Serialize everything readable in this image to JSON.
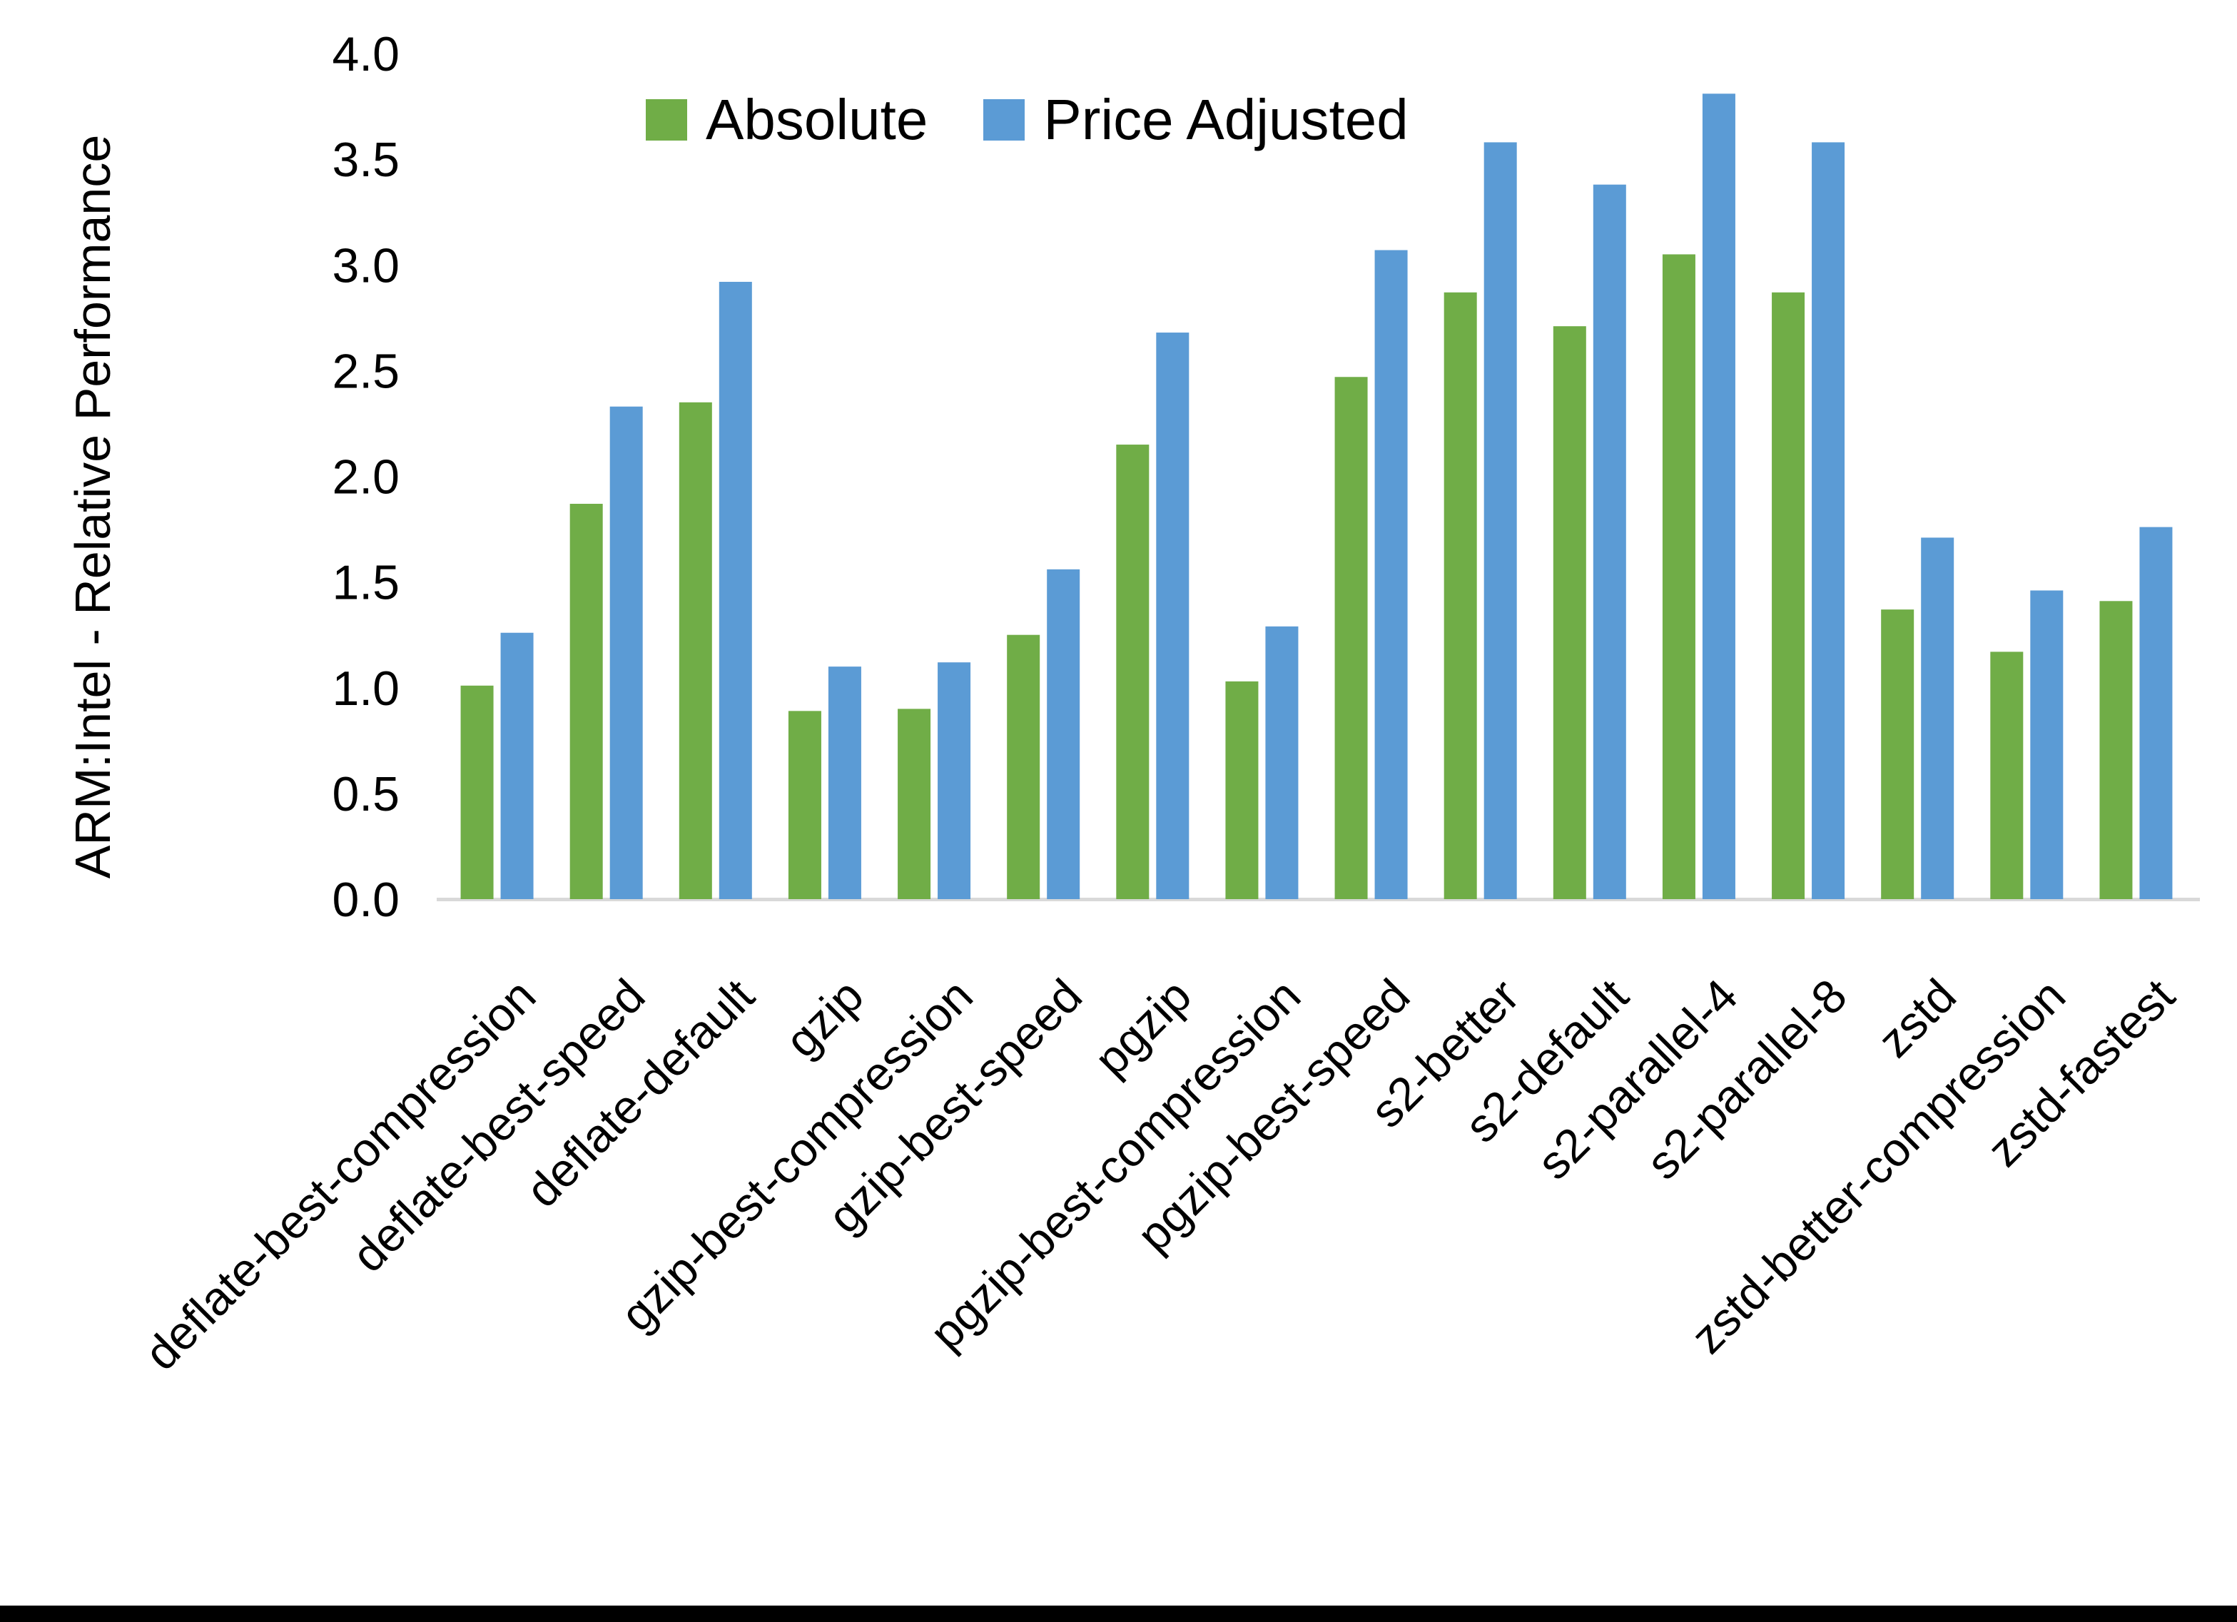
{
  "chart_data": {
    "type": "bar",
    "title": "",
    "xlabel": "",
    "ylabel": "ARM:Intel - Relative Performance",
    "ylim": [
      0.0,
      4.0
    ],
    "ytick_step": 0.5,
    "ytick_labels": [
      "0.0",
      "0.5",
      "1.0",
      "1.5",
      "2.0",
      "2.5",
      "3.0",
      "3.5",
      "4.0"
    ],
    "grid": false,
    "legend_position": "top-center",
    "axis_line_color": "#D9D9D9",
    "text_color": "#000000",
    "categories": [
      "deflate-best-compression",
      "deflate-best-speed",
      "deflate-default",
      "gzip",
      "gzip-best-compression",
      "gzip-best-speed",
      "pgzip",
      "pgzip-best-compression",
      "pgzip-best-speed",
      "s2-better",
      "s2-default",
      "s2-parallel-4",
      "s2-parallel-8",
      "zstd",
      "zstd-better-compression",
      "zstd-fastest"
    ],
    "series": [
      {
        "name": "Absolute",
        "color": "#70AD47",
        "values": [
          1.01,
          1.87,
          2.35,
          0.89,
          0.9,
          1.25,
          2.15,
          1.03,
          2.47,
          2.87,
          2.71,
          3.05,
          2.87,
          1.37,
          1.17,
          1.41
        ]
      },
      {
        "name": "Price Adjusted",
        "color": "#5B9BD5",
        "values": [
          1.26,
          2.33,
          2.92,
          1.1,
          1.12,
          1.56,
          2.68,
          1.29,
          3.07,
          3.58,
          3.38,
          3.81,
          3.58,
          1.71,
          1.46,
          1.76
        ]
      }
    ]
  },
  "frame": {
    "bottom_bar_color": "#000000",
    "background_color": "#FFFFFF"
  }
}
